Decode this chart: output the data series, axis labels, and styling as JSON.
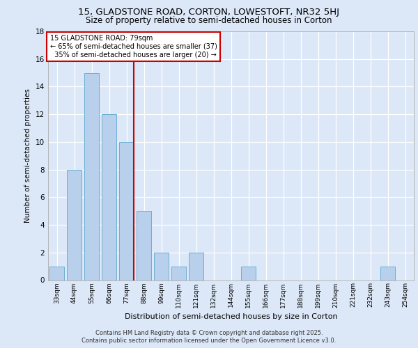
{
  "title1": "15, GLADSTONE ROAD, CORTON, LOWESTOFT, NR32 5HJ",
  "title2": "Size of property relative to semi-detached houses in Corton",
  "xlabel": "Distribution of semi-detached houses by size in Corton",
  "ylabel": "Number of semi-detached properties",
  "categories": [
    "33sqm",
    "44sqm",
    "55sqm",
    "66sqm",
    "77sqm",
    "88sqm",
    "99sqm",
    "110sqm",
    "121sqm",
    "132sqm",
    "144sqm",
    "155sqm",
    "166sqm",
    "177sqm",
    "188sqm",
    "199sqm",
    "210sqm",
    "221sqm",
    "232sqm",
    "243sqm",
    "254sqm"
  ],
  "values": [
    1,
    8,
    15,
    12,
    10,
    5,
    2,
    1,
    2,
    0,
    0,
    1,
    0,
    0,
    0,
    0,
    0,
    0,
    0,
    1,
    0
  ],
  "bar_color": "#b8d0eb",
  "bar_edge_color": "#6aaed6",
  "highlight_index": 4,
  "highlight_color": "#cc0000",
  "property_sqm": 79,
  "annotation_title": "15 GLADSTONE ROAD: 79sqm",
  "annotation_line1": "← 65% of semi-detached houses are smaller (37)",
  "annotation_line2": "  35% of semi-detached houses are larger (20) →",
  "ylim": [
    0,
    18
  ],
  "yticks": [
    0,
    2,
    4,
    6,
    8,
    10,
    12,
    14,
    16,
    18
  ],
  "footer1": "Contains HM Land Registry data © Crown copyright and database right 2025.",
  "footer2": "Contains public sector information licensed under the Open Government Licence v3.0.",
  "fig_bg_color": "#dce8f8",
  "plot_bg_color": "#dce8f8"
}
